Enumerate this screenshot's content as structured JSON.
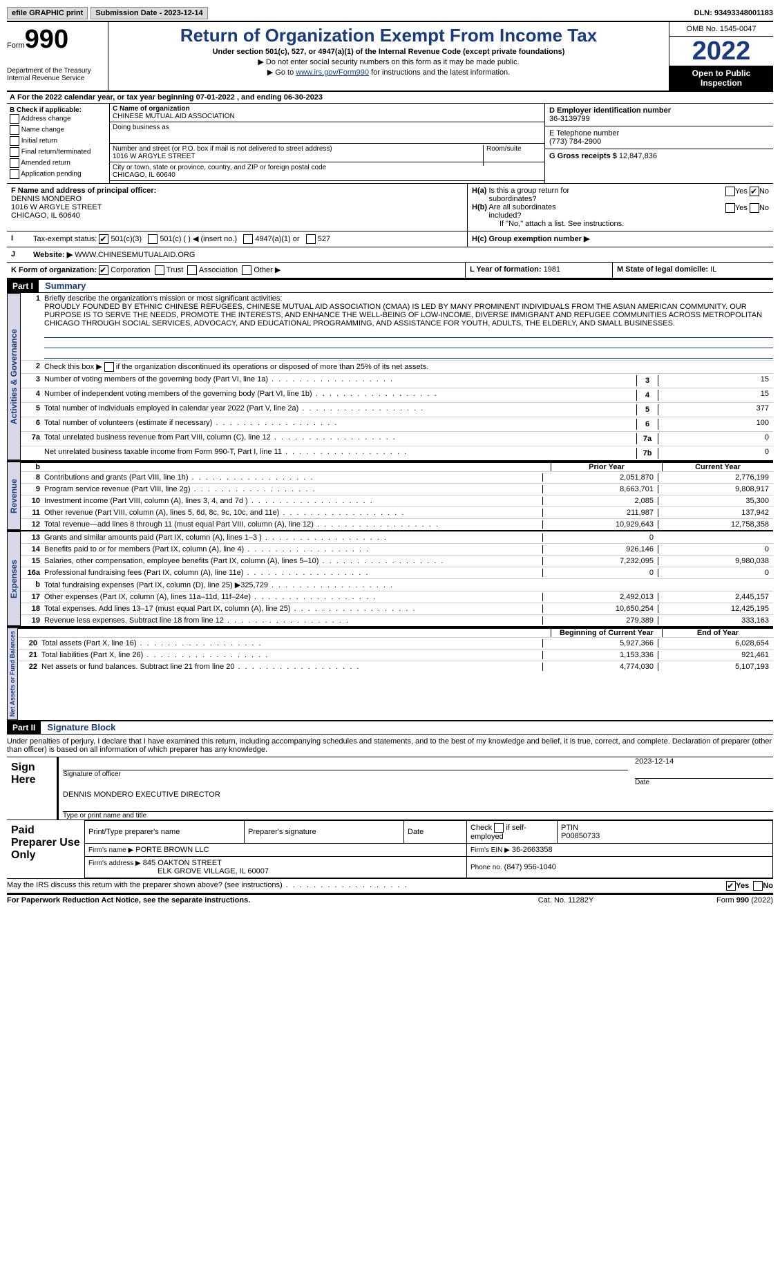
{
  "topbar": {
    "efile_label": "efile GRAPHIC print",
    "submission_label": "Submission Date - 2023-12-14",
    "dln_label": "DLN: 93493348001183"
  },
  "header": {
    "form_word": "Form",
    "form_num": "990",
    "dept": "Department of the Treasury",
    "irs": "Internal Revenue Service",
    "title": "Return of Organization Exempt From Income Tax",
    "sub1": "Under section 501(c), 527, or 4947(a)(1) of the Internal Revenue Code (except private foundations)",
    "sub2": "▶ Do not enter social security numbers on this form as it may be made public.",
    "sub3_pre": "▶ Go to ",
    "sub3_link": "www.irs.gov/Form990",
    "sub3_post": " for instructions and the latest information.",
    "omb": "OMB No. 1545-0047",
    "year": "2022",
    "openpub1": "Open to Public",
    "openpub2": "Inspection"
  },
  "A": "For the 2022 calendar year, or tax year beginning 07-01-2022    , and ending 06-30-2023",
  "B": {
    "label": "B Check if applicable:",
    "items": [
      "Address change",
      "Name change",
      "Initial return",
      "Final return/terminated",
      "Amended return",
      "Application pending"
    ]
  },
  "C": {
    "name_lbl": "C Name of organization",
    "name": "CHINESE MUTUAL AID ASSOCIATION",
    "dba_lbl": "Doing business as",
    "dba": "",
    "street_lbl": "Number and street (or P.O. box if mail is not delivered to street address)",
    "street": "1016 W ARGYLE STREET",
    "room_lbl": "Room/suite",
    "city_lbl": "City or town, state or province, country, and ZIP or foreign postal code",
    "city": "CHICAGO, IL  60640"
  },
  "D": {
    "lbl": "D Employer identification number",
    "val": "36-3139799"
  },
  "E": {
    "lbl": "E Telephone number",
    "val": "(773) 784-2900"
  },
  "G": {
    "lbl": "G Gross receipts $",
    "val": "12,847,836"
  },
  "F": {
    "lbl": "F  Name and address of principal officer:",
    "name": "DENNIS MONDERO",
    "addr1": "1016 W ARGYLE STREET",
    "addr2": "CHICAGO, IL  60640"
  },
  "H": {
    "a_lbl": "H(a)  Is this a group return for subordinates?",
    "b_lbl": "H(b)  Are all subordinates included?",
    "b_note": "If \"No,\" attach a list. See instructions.",
    "c_lbl": "H(c)  Group exemption number ▶",
    "yes": "Yes",
    "no": "No"
  },
  "I": {
    "lbl": "Tax-exempt status:",
    "o1": "501(c)(3)",
    "o2": "501(c) (  )  ◀ (insert no.)",
    "o3": "4947(a)(1) or",
    "o4": "527"
  },
  "J": {
    "lbl": "Website: ▶",
    "val": "WWW.CHINESEMUTUALAID.ORG"
  },
  "K": {
    "lbl": "K Form of organization:",
    "corp": "Corporation",
    "trust": "Trust",
    "assoc": "Association",
    "other": "Other ▶"
  },
  "L": {
    "lbl": "L Year of formation:",
    "val": "1981"
  },
  "M": {
    "lbl": "M State of legal domicile:",
    "val": "IL"
  },
  "part1": {
    "hdr": "Part I",
    "title": "Summary"
  },
  "side1": "Activities & Governance",
  "q1": {
    "lbl": "Briefly describe the organization's mission or most significant activities:",
    "txt": "PROUDLY FOUNDED BY ETHNIC CHINESE REFUGEES, CHINESE MUTUAL AID ASSOCIATION (CMAA) IS LED BY MANY PROMINENT INDIVIDUALS FROM THE ASIAN AMERICAN COMMUNITY. OUR PURPOSE IS TO SERVE THE NEEDS, PROMOTE THE INTERESTS, AND ENHANCE THE WELL-BEING OF LOW-INCOME, DIVERSE IMMIGRANT AND REFUGEE COMMUNITIES ACROSS METROPOLITAN CHICAGO THROUGH SOCIAL SERVICES, ADVOCACY, AND EDUCATIONAL PROGRAMMING, AND ASSISTANCE FOR YOUTH, ADULTS, THE ELDERLY, AND SMALL BUSINESSES."
  },
  "q2": "Check this box ▶     if the organization discontinued its operations or disposed of more than 25% of its net assets.",
  "rows_gov": [
    {
      "n": "3",
      "t": "Number of voting members of the governing body (Part VI, line 1a)",
      "box": "3",
      "v": "15"
    },
    {
      "n": "4",
      "t": "Number of independent voting members of the governing body (Part VI, line 1b)",
      "box": "4",
      "v": "15"
    },
    {
      "n": "5",
      "t": "Total number of individuals employed in calendar year 2022 (Part V, line 2a)",
      "box": "5",
      "v": "377"
    },
    {
      "n": "6",
      "t": "Total number of volunteers (estimate if necessary)",
      "box": "6",
      "v": "100"
    },
    {
      "n": "7a",
      "t": "Total unrelated business revenue from Part VIII, column (C), line 12",
      "box": "7a",
      "v": "0"
    },
    {
      "n": "",
      "t": "Net unrelated business taxable income from Form 990-T, Part I, line 11",
      "box": "7b",
      "v": "0"
    }
  ],
  "col_hdr": {
    "b": "b",
    "prior": "Prior Year",
    "curr": "Current Year"
  },
  "side2": "Revenue",
  "rows_rev": [
    {
      "n": "8",
      "t": "Contributions and grants (Part VIII, line 1h)",
      "p": "2,051,870",
      "c": "2,776,199"
    },
    {
      "n": "9",
      "t": "Program service revenue (Part VIII, line 2g)",
      "p": "8,663,701",
      "c": "9,808,917"
    },
    {
      "n": "10",
      "t": "Investment income (Part VIII, column (A), lines 3, 4, and 7d )",
      "p": "2,085",
      "c": "35,300"
    },
    {
      "n": "11",
      "t": "Other revenue (Part VIII, column (A), lines 5, 6d, 8c, 9c, 10c, and 11e)",
      "p": "211,987",
      "c": "137,942"
    },
    {
      "n": "12",
      "t": "Total revenue—add lines 8 through 11 (must equal Part VIII, column (A), line 12)",
      "p": "10,929,643",
      "c": "12,758,358"
    }
  ],
  "side3": "Expenses",
  "rows_exp": [
    {
      "n": "13",
      "t": "Grants and similar amounts paid (Part IX, column (A), lines 1–3 )",
      "p": "0",
      "c": ""
    },
    {
      "n": "14",
      "t": "Benefits paid to or for members (Part IX, column (A), line 4)",
      "p": "926,146",
      "c": "0"
    },
    {
      "n": "15",
      "t": "Salaries, other compensation, employee benefits (Part IX, column (A), lines 5–10)",
      "p": "7,232,095",
      "c": "9,980,038"
    },
    {
      "n": "16a",
      "t": "Professional fundraising fees (Part IX, column (A), line 11e)",
      "p": "0",
      "c": "0"
    },
    {
      "n": "b",
      "t": "Total fundraising expenses (Part IX, column (D), line 25) ▶325,729",
      "p": "",
      "c": "",
      "grey": true
    },
    {
      "n": "17",
      "t": "Other expenses (Part IX, column (A), lines 11a–11d, 11f–24e)",
      "p": "2,492,013",
      "c": "2,445,157"
    },
    {
      "n": "18",
      "t": "Total expenses. Add lines 13–17 (must equal Part IX, column (A), line 25)",
      "p": "10,650,254",
      "c": "12,425,195"
    },
    {
      "n": "19",
      "t": "Revenue less expenses. Subtract line 18 from line 12",
      "p": "279,389",
      "c": "333,163"
    }
  ],
  "side4": "Net Assets or Fund Balances",
  "bal_hdr": {
    "l": "Beginning of Current Year",
    "r": "End of Year"
  },
  "rows_bal": [
    {
      "n": "20",
      "t": "Total assets (Part X, line 16)",
      "p": "5,927,366",
      "c": "6,028,654"
    },
    {
      "n": "21",
      "t": "Total liabilities (Part X, line 26)",
      "p": "1,153,336",
      "c": "921,461"
    },
    {
      "n": "22",
      "t": "Net assets or fund balances. Subtract line 21 from line 20",
      "p": "4,774,030",
      "c": "5,107,193"
    }
  ],
  "part2": {
    "hdr": "Part II",
    "title": "Signature Block"
  },
  "sig_decl": "Under penalties of perjury, I declare that I have examined this return, including accompanying schedules and statements, and to the best of my knowledge and belief, it is true, correct, and complete. Declaration of preparer (other than officer) is based on all information of which preparer has any knowledge.",
  "sign": {
    "here": "Sign Here",
    "sig_lbl": "Signature of officer",
    "date_lbl": "Date",
    "date": "2023-12-14",
    "name": "DENNIS MONDERO  EXECUTIVE DIRECTOR",
    "name_lbl": "Type or print name and title"
  },
  "prep": {
    "hdr": "Paid Preparer Use Only",
    "h1": "Print/Type preparer's name",
    "h2": "Preparer's signature",
    "h3": "Date",
    "h4_pre": "Check",
    "h4_post": "if self-employed",
    "h5": "PTIN",
    "ptin": "P00850733",
    "firm_lbl": "Firm's name   ▶",
    "firm": "PORTE BROWN LLC",
    "ein_lbl": "Firm's EIN ▶",
    "ein": "36-2663358",
    "addr_lbl": "Firm's address ▶",
    "addr1": "845 OAKTON STREET",
    "addr2": "ELK GROVE VILLAGE, IL  60007",
    "phone_lbl": "Phone no.",
    "phone": "(847) 956-1040"
  },
  "may_irs": "May the IRS discuss this return with the preparer shown above? (see instructions)",
  "foot": {
    "l": "For Paperwork Reduction Act Notice, see the separate instructions.",
    "c": "Cat. No. 11282Y",
    "r": "Form 990 (2022)"
  }
}
